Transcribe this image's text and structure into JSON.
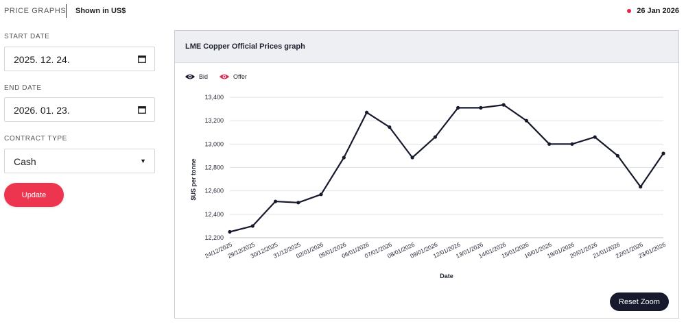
{
  "header": {
    "brand": "PRICE GRAPHS",
    "currency_note": "Shown in US$",
    "current_date": "26 Jan 2026",
    "status_color": "#e8244a"
  },
  "filters": {
    "start_date_label": "START DATE",
    "start_date_value": "2025. 12. 24.",
    "end_date_label": "END DATE",
    "end_date_value": "2026. 01. 23.",
    "contract_type_label": "CONTRACT TYPE",
    "contract_type_value": "Cash",
    "update_label": "Update",
    "update_color": "#ee3550"
  },
  "panel": {
    "title": "LME Copper Official Prices graph",
    "reset_zoom_label": "Reset Zoom"
  },
  "legend": {
    "bid": "Bid",
    "offer": "Offer",
    "bid_color": "#161a2c",
    "offer_color": "#e8244a"
  },
  "chart_data": {
    "type": "line",
    "title": "LME Copper Official Prices graph",
    "xlabel": "Date",
    "ylabel": "$US per tonne",
    "ylim": [
      12200,
      13400
    ],
    "yticks": [
      "12,200",
      "12,400",
      "12,600",
      "12,800",
      "13,000",
      "13,200",
      "13,400"
    ],
    "ytick_values": [
      12200,
      12400,
      12600,
      12800,
      13000,
      13200,
      13400
    ],
    "categories": [
      "24/12/2025",
      "29/12/2025",
      "30/12/2025",
      "31/12/2025",
      "02/01/2026",
      "05/01/2026",
      "06/01/2026",
      "07/01/2026",
      "08/01/2026",
      "09/01/2026",
      "12/01/2026",
      "13/01/2026",
      "14/01/2026",
      "15/01/2026",
      "16/01/2026",
      "19/01/2026",
      "20/01/2026",
      "21/01/2026",
      "22/01/2026",
      "23/01/2026"
    ],
    "series": [
      {
        "name": "Bid",
        "values": [
          12250,
          12300,
          12510,
          12500,
          12570,
          12885,
          13270,
          13145,
          12885,
          13060,
          13310,
          13310,
          13335,
          13200,
          13000,
          13000,
          13060,
          12900,
          12635,
          12920
        ]
      }
    ]
  }
}
